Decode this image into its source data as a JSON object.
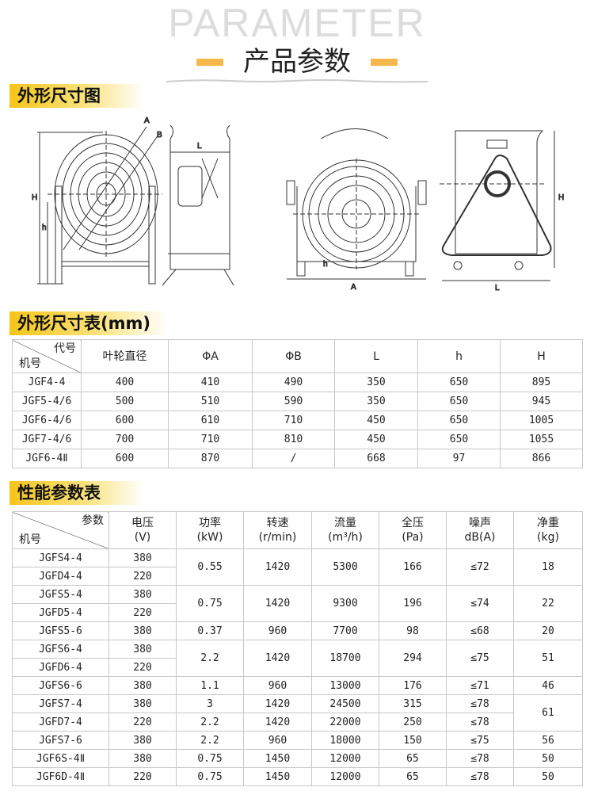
{
  "header": {
    "watermark": "PARAMETER",
    "title": "产品参数",
    "accent": "#f7b84b"
  },
  "sections": {
    "drawing": "外形尺寸图",
    "dimensions": "外形尺寸表(mm)",
    "performance": "性能参数表"
  },
  "drawing_labels": {
    "A": "A",
    "B": "B",
    "L": "L",
    "H": "H",
    "h": "h"
  },
  "dim_table": {
    "corner_top": "代号",
    "corner_bottom": "机号",
    "headers": [
      "叶轮直径",
      "ΦA",
      "ΦB",
      "L",
      "h",
      "H"
    ],
    "rows": [
      [
        "JGF4-4",
        "400",
        "410",
        "490",
        "350",
        "650",
        "895"
      ],
      [
        "JGF5-4/6",
        "500",
        "510",
        "590",
        "350",
        "650",
        "945"
      ],
      [
        "JGF6-4/6",
        "600",
        "610",
        "710",
        "450",
        "650",
        "1005"
      ],
      [
        "JGF7-4/6",
        "700",
        "710",
        "810",
        "450",
        "650",
        "1055"
      ],
      [
        "JGF6-4Ⅱ",
        "600",
        "870",
        "/",
        "668",
        "97",
        "866"
      ]
    ]
  },
  "perf_table": {
    "corner_top": "参数",
    "corner_bottom": "机号",
    "headers": [
      [
        "电压",
        "(V)"
      ],
      [
        "功率",
        "(kW)"
      ],
      [
        "转速",
        "(r/min)"
      ],
      [
        "流量",
        "(m³/h)"
      ],
      [
        "全压",
        "(Pa)"
      ],
      [
        "噪声",
        "dB(A)"
      ],
      [
        "净重",
        "(kg)"
      ]
    ],
    "rows": [
      {
        "cells": [
          "JGFS4-4",
          "380",
          "0.55",
          "1420",
          "5300",
          "166",
          "≤72",
          "18"
        ],
        "span": [
          1,
          1,
          2,
          2,
          2,
          2,
          2,
          2
        ]
      },
      {
        "cells": [
          "JGFD4-4",
          "220",
          null,
          null,
          null,
          null,
          null,
          null
        ],
        "span": [
          1,
          1,
          0,
          0,
          0,
          0,
          0,
          0
        ]
      },
      {
        "cells": [
          "JGFS5-4",
          "380",
          "0.75",
          "1420",
          "9300",
          "196",
          "≤74",
          "22"
        ],
        "span": [
          1,
          1,
          2,
          2,
          2,
          2,
          2,
          2
        ]
      },
      {
        "cells": [
          "JGFD5-4",
          "220",
          null,
          null,
          null,
          null,
          null,
          null
        ],
        "span": [
          1,
          1,
          0,
          0,
          0,
          0,
          0,
          0
        ]
      },
      {
        "cells": [
          "JGFS5-6",
          "380",
          "0.37",
          "960",
          "7700",
          "98",
          "≤68",
          "20"
        ],
        "span": [
          1,
          1,
          1,
          1,
          1,
          1,
          1,
          1
        ]
      },
      {
        "cells": [
          "JGFS6-4",
          "380",
          "2.2",
          "1420",
          "18700",
          "294",
          "≤75",
          "51"
        ],
        "span": [
          1,
          1,
          2,
          2,
          2,
          2,
          2,
          2
        ]
      },
      {
        "cells": [
          "JGFD6-4",
          "220",
          null,
          null,
          null,
          null,
          null,
          null
        ],
        "span": [
          1,
          1,
          0,
          0,
          0,
          0,
          0,
          0
        ]
      },
      {
        "cells": [
          "JGFS6-6",
          "380",
          "1.1",
          "960",
          "13000",
          "176",
          "≤71",
          "46"
        ],
        "span": [
          1,
          1,
          1,
          1,
          1,
          1,
          1,
          1
        ]
      },
      {
        "cells": [
          "JGFS7-4",
          "380",
          "3",
          "1420",
          "24500",
          "315",
          "≤78",
          "61"
        ],
        "span": [
          1,
          1,
          1,
          1,
          1,
          1,
          1,
          2
        ]
      },
      {
        "cells": [
          "JGFD7-4",
          "220",
          "2.2",
          "1420",
          "22000",
          "250",
          "≤78",
          null
        ],
        "span": [
          1,
          1,
          1,
          1,
          1,
          1,
          1,
          0
        ]
      },
      {
        "cells": [
          "JGFS7-6",
          "380",
          "2.2",
          "960",
          "18000",
          "150",
          "≤75",
          "56"
        ],
        "span": [
          1,
          1,
          1,
          1,
          1,
          1,
          1,
          1
        ]
      },
      {
        "cells": [
          "JGF6S-4Ⅱ",
          "380",
          "0.75",
          "1450",
          "12000",
          "65",
          "≤78",
          "50"
        ],
        "span": [
          1,
          1,
          1,
          1,
          1,
          1,
          1,
          1
        ]
      },
      {
        "cells": [
          "JGF6D-4Ⅱ",
          "220",
          "0.75",
          "1450",
          "12000",
          "65",
          "≤78",
          "50"
        ],
        "span": [
          1,
          1,
          1,
          1,
          1,
          1,
          1,
          1
        ]
      }
    ]
  }
}
